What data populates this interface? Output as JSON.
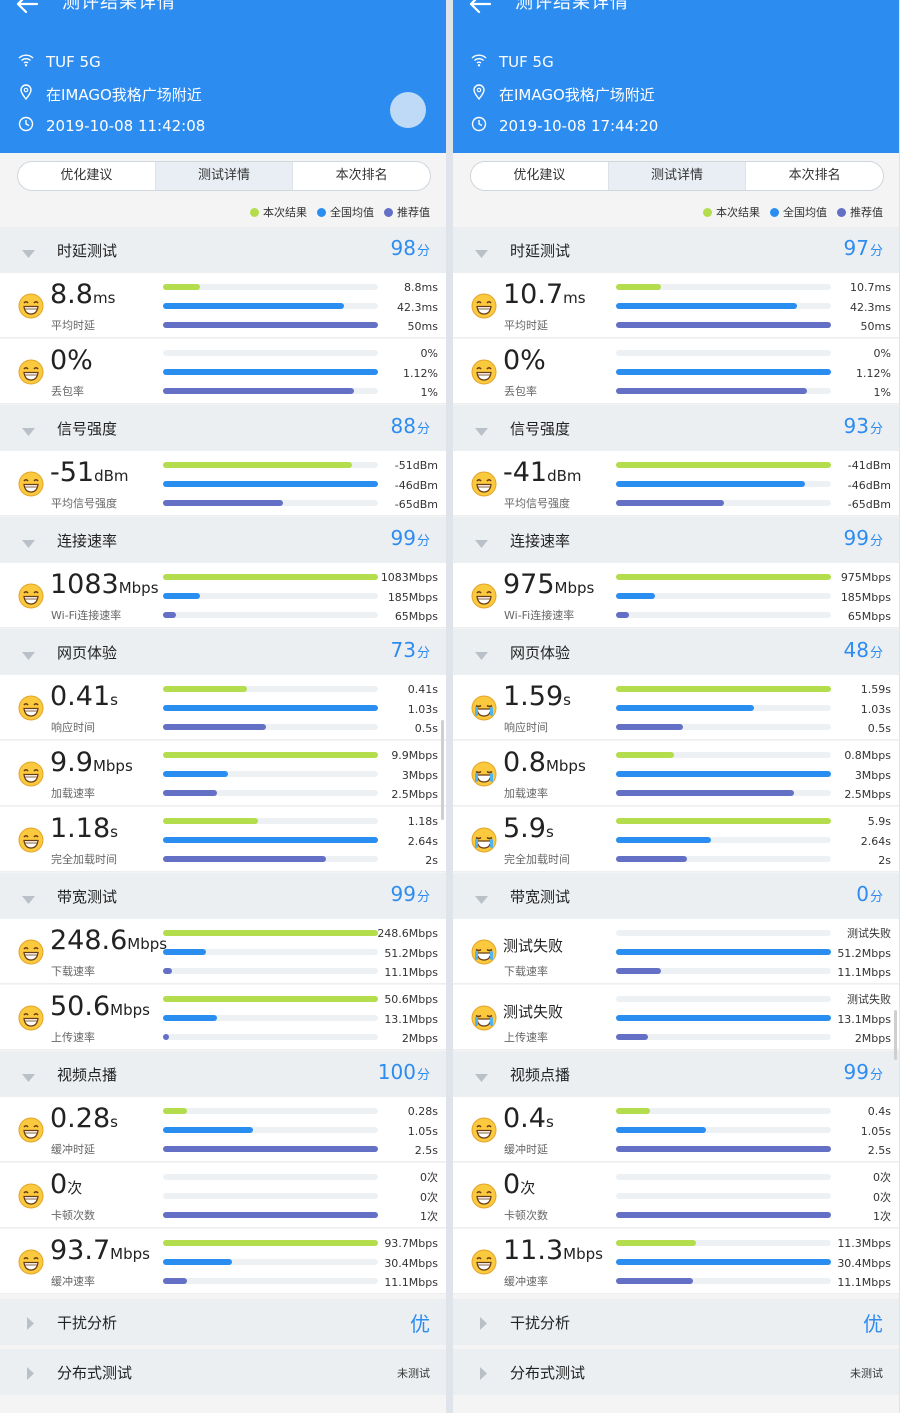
{
  "colors": {
    "header": "#2d8cf0",
    "current": "#b3dd4c",
    "national": "#2a8ef0",
    "recommended": "#6370c6",
    "score": "#2d8cf0"
  },
  "icons": {
    "back": "arrow-left-icon",
    "wifi": "wifi-icon",
    "location": "location-pin-icon",
    "time": "clock-icon",
    "expand": "chevron-down-icon",
    "collapsed": "chevron-right-icon",
    "face": "emoji-face-icon"
  },
  "panels": [
    {
      "title": "测评结果详情",
      "wifi": "TUF 5G",
      "location": "在IMAGO我格广场附近",
      "time": "2019-10-08 11:42:08",
      "tabs": [
        "优化建议",
        "测试详情",
        "本次排名"
      ],
      "legend": [
        "本次结果",
        "全国均值",
        "推荐值"
      ],
      "sections": [
        {
          "name": "时延测试",
          "score": "98",
          "unit": "分",
          "metrics": [
            {
              "value": "8.8",
              "unit": "ms",
              "label": "平均时延",
              "r": [
                "8.8ms",
                "42.3ms",
                "50ms"
              ],
              "fills": [
                0.17,
                0.84,
                1.0
              ],
              "face": "smile"
            },
            {
              "value": "0%",
              "unit": "",
              "label": "丢包率",
              "r": [
                "0%",
                "1.12%",
                "1%"
              ],
              "fills": [
                0,
                1.0,
                0.89
              ],
              "face": "smile"
            }
          ]
        },
        {
          "name": "信号强度",
          "score": "88",
          "unit": "分",
          "metrics": [
            {
              "value": "-51",
              "unit": "dBm",
              "label": "平均信号强度",
              "r": [
                "-51dBm",
                "-46dBm",
                "-65dBm"
              ],
              "fills": [
                0.88,
                1.0,
                0.56
              ],
              "face": "smile"
            }
          ]
        },
        {
          "name": "连接速率",
          "score": "99",
          "unit": "分",
          "metrics": [
            {
              "value": "1083",
              "unit": "Mbps",
              "label": "Wi-Fi连接速率",
              "r": [
                "1083Mbps",
                "185Mbps",
                "65Mbps"
              ],
              "fills": [
                1.0,
                0.17,
                0.06
              ],
              "face": "smile"
            }
          ]
        },
        {
          "name": "网页体验",
          "score": "73",
          "unit": "分",
          "metrics": [
            {
              "value": "0.41",
              "unit": "s",
              "label": "响应时间",
              "r": [
                "0.41s",
                "1.03s",
                "0.5s"
              ],
              "fills": [
                0.39,
                1.0,
                0.48
              ],
              "face": "smile"
            },
            {
              "value": "9.9",
              "unit": "Mbps",
              "label": "加载速率",
              "r": [
                "9.9Mbps",
                "3Mbps",
                "2.5Mbps"
              ],
              "fills": [
                1.0,
                0.3,
                0.25
              ],
              "face": "smile"
            },
            {
              "value": "1.18",
              "unit": "s",
              "label": "完全加载时间",
              "r": [
                "1.18s",
                "2.64s",
                "2s"
              ],
              "fills": [
                0.44,
                1.0,
                0.76
              ],
              "face": "smile"
            }
          ]
        },
        {
          "name": "带宽测试",
          "score": "99",
          "unit": "分",
          "metrics": [
            {
              "value": "248.6",
              "unit": "Mbps",
              "label": "下载速率",
              "r": [
                "248.6Mbps",
                "51.2Mbps",
                "11.1Mbps"
              ],
              "fills": [
                1.0,
                0.2,
                0.04
              ],
              "face": "smile"
            },
            {
              "value": "50.6",
              "unit": "Mbps",
              "label": "上传速率",
              "r": [
                "50.6Mbps",
                "13.1Mbps",
                "2Mbps"
              ],
              "fills": [
                1.0,
                0.25,
                0.03
              ],
              "face": "smile"
            }
          ]
        },
        {
          "name": "视频点播",
          "score": "100",
          "unit": "分",
          "metrics": [
            {
              "value": "0.28",
              "unit": "s",
              "label": "缓冲时延",
              "r": [
                "0.28s",
                "1.05s",
                "2.5s"
              ],
              "fills": [
                0.11,
                0.42,
                1.0
              ],
              "face": "smile"
            },
            {
              "value": "0",
              "unit": "次",
              "label": "卡顿次数",
              "r": [
                "0次",
                "0次",
                "1次"
              ],
              "fills": [
                0,
                0,
                1.0
              ],
              "face": "smile"
            },
            {
              "value": "93.7",
              "unit": "Mbps",
              "label": "缓冲速率",
              "r": [
                "93.7Mbps",
                "30.4Mbps",
                "11.1Mbps"
              ],
              "fills": [
                1.0,
                0.32,
                0.11
              ],
              "face": "smile"
            }
          ]
        },
        {
          "name": "干扰分析",
          "score": "优",
          "unit": "",
          "collapsed": true,
          "metrics": []
        },
        {
          "name": "分布式测试",
          "score": "未测试",
          "unit": "",
          "collapsed": true,
          "small": true,
          "metrics": []
        }
      ]
    },
    {
      "title": "测评结果详情",
      "wifi": "TUF 5G",
      "location": "在IMAGO我格广场附近",
      "time": "2019-10-08 17:44:20",
      "tabs": [
        "优化建议",
        "测试详情",
        "本次排名"
      ],
      "legend": [
        "本次结果",
        "全国均值",
        "推荐值"
      ],
      "sections": [
        {
          "name": "时延测试",
          "score": "97",
          "unit": "分",
          "metrics": [
            {
              "value": "10.7",
              "unit": "ms",
              "label": "平均时延",
              "r": [
                "10.7ms",
                "42.3ms",
                "50ms"
              ],
              "fills": [
                0.21,
                0.84,
                1.0
              ],
              "face": "smile"
            },
            {
              "value": "0%",
              "unit": "",
              "label": "丢包率",
              "r": [
                "0%",
                "1.12%",
                "1%"
              ],
              "fills": [
                0,
                1.0,
                0.89
              ],
              "face": "smile"
            }
          ]
        },
        {
          "name": "信号强度",
          "score": "93",
          "unit": "分",
          "metrics": [
            {
              "value": "-41",
              "unit": "dBm",
              "label": "平均信号强度",
              "r": [
                "-41dBm",
                "-46dBm",
                "-65dBm"
              ],
              "fills": [
                1.0,
                0.88,
                0.5
              ],
              "face": "smile"
            }
          ]
        },
        {
          "name": "连接速率",
          "score": "99",
          "unit": "分",
          "metrics": [
            {
              "value": "975",
              "unit": "Mbps",
              "label": "Wi-Fi连接速率",
              "r": [
                "975Mbps",
                "185Mbps",
                "65Mbps"
              ],
              "fills": [
                1.0,
                0.18,
                0.06
              ],
              "face": "smile"
            }
          ]
        },
        {
          "name": "网页体验",
          "score": "48",
          "unit": "分",
          "metrics": [
            {
              "value": "1.59",
              "unit": "s",
              "label": "响应时间",
              "r": [
                "1.59s",
                "1.03s",
                "0.5s"
              ],
              "fills": [
                1.0,
                0.64,
                0.31
              ],
              "face": "cry"
            },
            {
              "value": "0.8",
              "unit": "Mbps",
              "label": "加载速率",
              "r": [
                "0.8Mbps",
                "3Mbps",
                "2.5Mbps"
              ],
              "fills": [
                0.27,
                1.0,
                0.83
              ],
              "face": "cry"
            },
            {
              "value": "5.9",
              "unit": "s",
              "label": "完全加载时间",
              "r": [
                "5.9s",
                "2.64s",
                "2s"
              ],
              "fills": [
                1.0,
                0.44,
                0.33
              ],
              "face": "cry"
            }
          ]
        },
        {
          "name": "带宽测试",
          "score": "0",
          "unit": "分",
          "metrics": [
            {
              "value": "测试失败",
              "unit": "",
              "label": "下载速率",
              "r": [
                "测试失败",
                "51.2Mbps",
                "11.1Mbps"
              ],
              "fills": [
                0,
                1.0,
                0.21
              ],
              "face": "cry",
              "small": true
            },
            {
              "value": "测试失败",
              "unit": "",
              "label": "上传速率",
              "r": [
                "测试失败",
                "13.1Mbps",
                "2Mbps"
              ],
              "fills": [
                0,
                1.0,
                0.15
              ],
              "face": "cry",
              "small": true
            }
          ]
        },
        {
          "name": "视频点播",
          "score": "99",
          "unit": "分",
          "metrics": [
            {
              "value": "0.4",
              "unit": "s",
              "label": "缓冲时延",
              "r": [
                "0.4s",
                "1.05s",
                "2.5s"
              ],
              "fills": [
                0.16,
                0.42,
                1.0
              ],
              "face": "smile"
            },
            {
              "value": "0",
              "unit": "次",
              "label": "卡顿次数",
              "r": [
                "0次",
                "0次",
                "1次"
              ],
              "fills": [
                0,
                0,
                1.0
              ],
              "face": "smile"
            },
            {
              "value": "11.3",
              "unit": "Mbps",
              "label": "缓冲速率",
              "r": [
                "11.3Mbps",
                "30.4Mbps",
                "11.1Mbps"
              ],
              "fills": [
                0.37,
                1.0,
                0.36
              ],
              "face": "smile"
            }
          ]
        },
        {
          "name": "干扰分析",
          "score": "优",
          "unit": "",
          "collapsed": true,
          "metrics": []
        },
        {
          "name": "分布式测试",
          "score": "未测试",
          "unit": "",
          "collapsed": true,
          "small": true,
          "metrics": []
        }
      ]
    }
  ]
}
